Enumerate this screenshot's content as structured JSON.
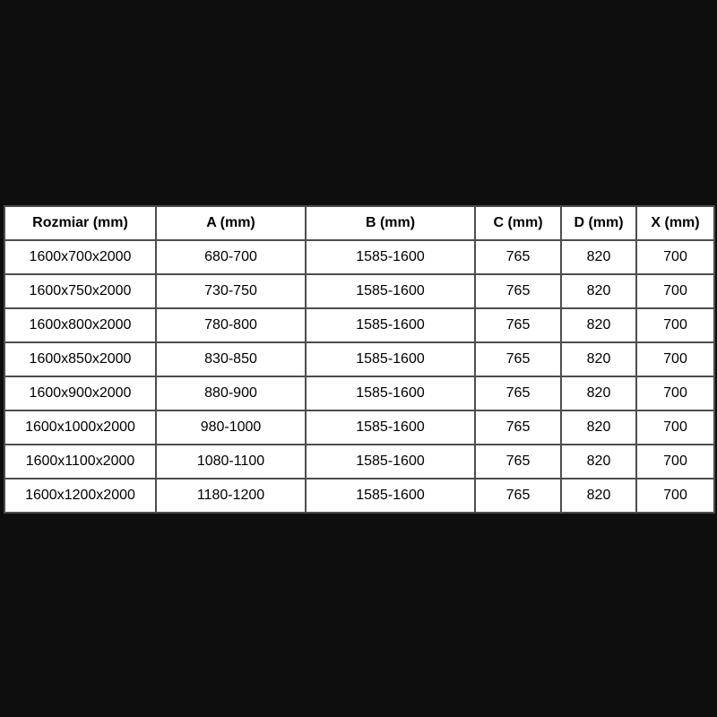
{
  "page": {
    "background_color": "#0e0e0e"
  },
  "table": {
    "colors": {
      "cell_background": "#ffffff",
      "border": "#4d4d4d",
      "text": "#000000"
    },
    "columns": [
      "Rozmiar (mm)",
      "A (mm)",
      "B (mm)",
      "C (mm)",
      "D (mm)",
      "X (mm)"
    ],
    "rows": [
      [
        "1600x700x2000",
        "680-700",
        "1585-1600",
        "765",
        "820",
        "700"
      ],
      [
        "1600x750x2000",
        "730-750",
        "1585-1600",
        "765",
        "820",
        "700"
      ],
      [
        "1600x800x2000",
        "780-800",
        "1585-1600",
        "765",
        "820",
        "700"
      ],
      [
        "1600x850x2000",
        "830-850",
        "1585-1600",
        "765",
        "820",
        "700"
      ],
      [
        "1600x900x2000",
        "880-900",
        "1585-1600",
        "765",
        "820",
        "700"
      ],
      [
        "1600x1000x2000",
        "980-1000",
        "1585-1600",
        "765",
        "820",
        "700"
      ],
      [
        "1600x1100x2000",
        "1080-1100",
        "1585-1600",
        "765",
        "820",
        "700"
      ],
      [
        "1600x1200x2000",
        "1180-1200",
        "1585-1600",
        "765",
        "820",
        "700"
      ]
    ]
  }
}
